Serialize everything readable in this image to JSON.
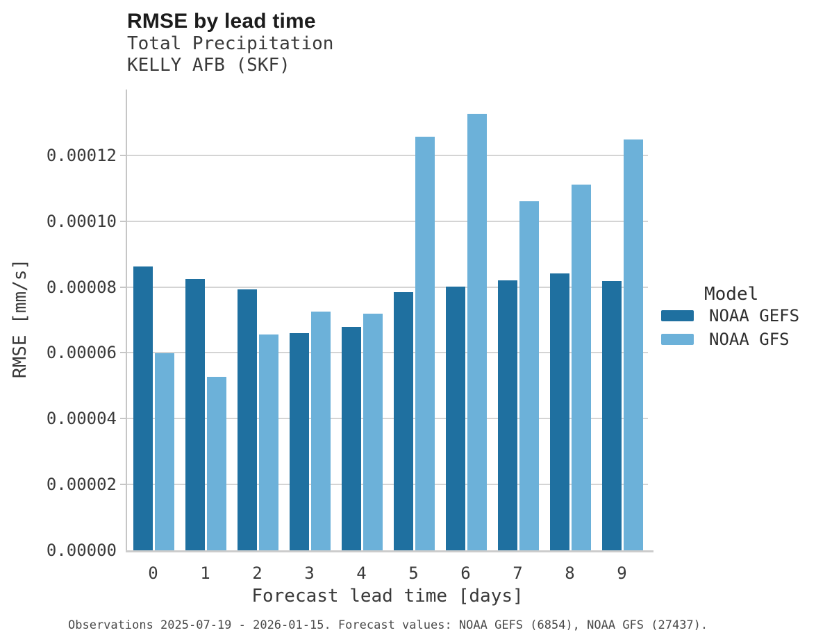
{
  "header": {
    "title": "RMSE by lead time",
    "subtitle_line1": "Total Precipitation",
    "subtitle_line2": "KELLY AFB (SKF)"
  },
  "legend": {
    "title": "Model"
  },
  "caption": "Observations 2025-07-19 - 2026-01-15. Forecast values: NOAA GEFS (6854), NOAA GFS (27437).",
  "chart_data": {
    "type": "bar",
    "title": "RMSE by lead time",
    "subtitle": "Total Precipitation",
    "station": "KELLY AFB (SKF)",
    "categories": [
      "0",
      "1",
      "2",
      "3",
      "4",
      "5",
      "6",
      "7",
      "8",
      "9"
    ],
    "xlabel": "Forecast lead time [days]",
    "ylabel": "RMSE [mm/s]",
    "ylim": [
      0,
      0.00014
    ],
    "ytick_values": [
      0.0,
      2e-05,
      4e-05,
      6e-05,
      8e-05,
      0.0001,
      0.00012
    ],
    "ytick_labels": [
      "0.00000",
      "0.00002",
      "0.00004",
      "0.00006",
      "0.00008",
      "0.00010",
      "0.00012"
    ],
    "grid": "horizontal",
    "legend_position": "right",
    "series": [
      {
        "name": "NOAA GEFS",
        "color": "#1f70a0",
        "values": [
          8.62e-05,
          8.25e-05,
          7.92e-05,
          6.61e-05,
          6.78e-05,
          7.85e-05,
          8.02e-05,
          8.21e-05,
          8.42e-05,
          8.19e-05
        ]
      },
      {
        "name": "NOAA GFS",
        "color": "#6cb1d9",
        "values": [
          5.98e-05,
          5.28e-05,
          6.55e-05,
          7.26e-05,
          7.2e-05,
          0.0001257,
          0.0001326,
          0.0001061,
          0.0001112,
          0.0001248
        ]
      }
    ]
  }
}
